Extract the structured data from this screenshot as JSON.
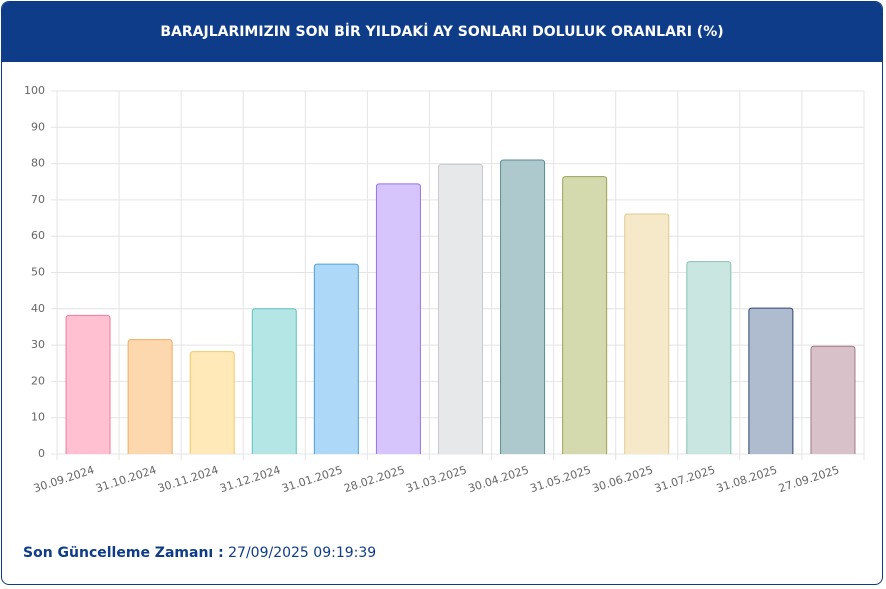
{
  "chart_data": {
    "type": "bar",
    "title": "BARAJLARIMIZIN SON BİR YILDAKİ AY SONLARI DOLULUK ORANLARI (%)",
    "categories": [
      "30.09.2024",
      "31.10.2024",
      "30.11.2024",
      "31.12.2024",
      "31.01.2025",
      "28.02.2025",
      "31.03.2025",
      "30.04.2025",
      "31.05.2025",
      "30.06.2025",
      "31.07.2025",
      "31.08.2025",
      "27.09.2025"
    ],
    "values": [
      38.2,
      31.5,
      28.2,
      40.0,
      52.3,
      74.4,
      79.8,
      81.0,
      76.4,
      66.1,
      53.0,
      40.2,
      29.7
    ],
    "colors": [
      "#ffc1d2",
      "#fdd7ae",
      "#ffe9b8",
      "#b5e6e6",
      "#add8f7",
      "#d5c5fc",
      "#e7e8ea",
      "#aec9cd",
      "#d4daae",
      "#f6e9c9",
      "#c9e7e0",
      "#afbbce",
      "#d8c1c9"
    ],
    "border_colors": [
      "#ec7d9c",
      "#f0a962",
      "#f1c965",
      "#5ec1c1",
      "#4ea1d8",
      "#9b72e9",
      "#c9c9cb",
      "#5b8b91",
      "#9ba152",
      "#e1c992",
      "#89c1b1",
      "#2d4571",
      "#a17989"
    ],
    "ylim": [
      0,
      100
    ],
    "yticks": [
      0,
      10,
      20,
      30,
      40,
      50,
      60,
      70,
      80,
      90,
      100
    ],
    "grid": true
  },
  "footer": {
    "label": "Son Güncelleme Zamanı :",
    "value": "27/09/2025 09:19:39"
  }
}
